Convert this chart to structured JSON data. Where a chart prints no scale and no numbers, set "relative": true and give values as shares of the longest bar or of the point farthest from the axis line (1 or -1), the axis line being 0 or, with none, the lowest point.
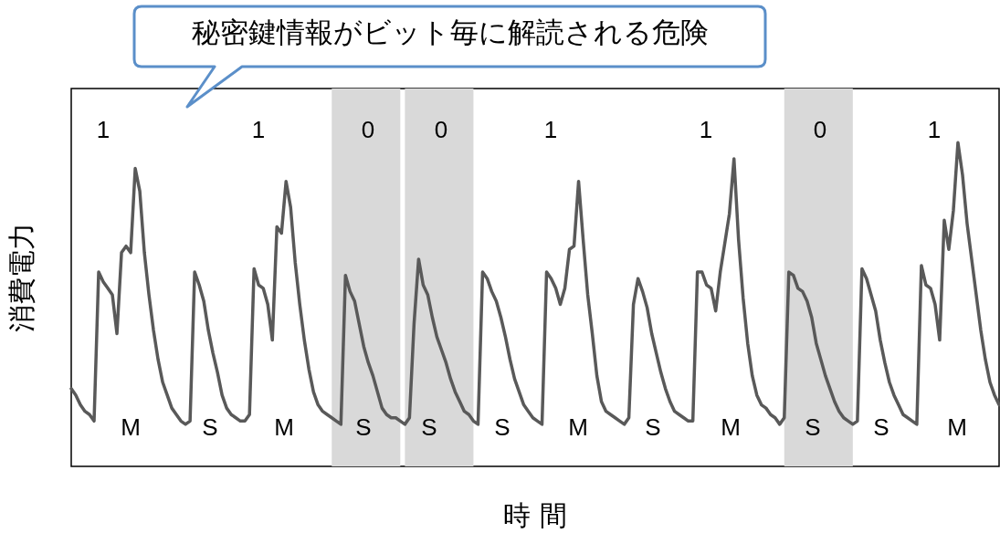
{
  "chart_data": {
    "type": "line",
    "relative": true,
    "xlabel": "時 間",
    "ylabel": "消費電力",
    "tick_labels": false,
    "grid": false,
    "line_style": "solid",
    "categories": [
      null,
      null,
      null,
      null,
      null,
      null,
      null,
      null,
      null,
      null,
      null,
      null,
      null,
      null,
      null,
      null,
      null,
      null,
      null,
      null,
      null,
      null,
      null,
      null,
      null,
      null,
      null,
      null,
      null,
      null,
      null,
      null,
      null,
      null,
      null,
      null,
      null,
      null,
      null,
      null,
      null,
      null,
      null,
      null,
      null,
      null,
      null,
      null,
      null,
      null,
      null,
      null,
      null,
      null,
      null,
      null,
      null,
      null,
      null,
      null,
      null,
      null,
      null,
      null,
      null,
      null,
      null,
      null,
      null,
      null,
      null,
      null,
      null,
      null,
      null,
      null,
      null,
      null,
      null,
      null,
      null,
      null,
      null,
      null,
      null,
      null,
      null,
      null,
      null,
      null,
      null,
      null,
      null,
      null,
      null,
      null,
      null,
      null,
      null,
      null,
      null,
      null,
      null,
      null,
      null,
      null,
      null,
      null,
      null,
      null,
      null,
      null,
      null,
      null,
      null,
      null,
      null,
      null,
      null,
      null,
      null,
      null,
      null,
      null,
      null,
      null,
      null,
      null,
      null,
      null,
      null,
      null,
      null,
      null,
      null,
      null,
      null,
      null,
      null,
      null,
      null,
      null,
      null,
      null,
      null,
      null,
      null,
      null,
      null,
      null,
      null,
      null,
      null,
      null,
      null,
      null,
      null,
      null,
      null,
      null,
      null,
      null,
      null,
      null,
      null,
      null,
      null,
      null,
      null,
      null,
      null,
      null,
      null,
      null,
      null,
      null,
      null,
      null,
      null,
      null,
      null,
      null,
      null,
      null,
      null,
      null,
      null,
      null,
      null,
      null,
      null,
      null,
      null,
      null,
      null,
      null,
      null,
      null,
      null,
      null,
      null,
      null,
      null,
      null
    ],
    "series": [
      {
        "color": "#595959",
        "values": [
          0.24,
          0.22,
          0.19,
          0.17,
          0.16,
          0.14,
          0.6,
          0.57,
          0.55,
          0.53,
          0.41,
          0.66,
          0.68,
          0.66,
          0.92,
          0.85,
          0.66,
          0.53,
          0.42,
          0.33,
          0.26,
          0.22,
          0.18,
          0.16,
          0.14,
          0.13,
          0.14,
          0.6,
          0.56,
          0.51,
          0.42,
          0.35,
          0.29,
          0.22,
          0.18,
          0.16,
          0.15,
          0.14,
          0.14,
          0.16,
          0.61,
          0.56,
          0.55,
          0.5,
          0.39,
          0.74,
          0.72,
          0.88,
          0.8,
          0.63,
          0.5,
          0.39,
          0.3,
          0.23,
          0.19,
          0.17,
          0.16,
          0.15,
          0.14,
          0.13,
          0.59,
          0.54,
          0.51,
          0.44,
          0.37,
          0.32,
          0.28,
          0.23,
          0.18,
          0.16,
          0.15,
          0.15,
          0.14,
          0.13,
          0.15,
          0.44,
          0.64,
          0.56,
          0.53,
          0.46,
          0.4,
          0.36,
          0.32,
          0.27,
          0.23,
          0.2,
          0.17,
          0.16,
          0.14,
          0.13,
          0.6,
          0.58,
          0.54,
          0.51,
          0.46,
          0.4,
          0.33,
          0.27,
          0.23,
          0.19,
          0.17,
          0.15,
          0.14,
          0.13,
          0.6,
          0.58,
          0.55,
          0.5,
          0.55,
          0.67,
          0.68,
          0.88,
          0.7,
          0.53,
          0.41,
          0.28,
          0.2,
          0.17,
          0.16,
          0.15,
          0.14,
          0.13,
          0.15,
          0.5,
          0.58,
          0.54,
          0.49,
          0.41,
          0.35,
          0.29,
          0.24,
          0.2,
          0.17,
          0.16,
          0.15,
          0.14,
          0.14,
          0.6,
          0.6,
          0.56,
          0.55,
          0.48,
          0.6,
          0.69,
          0.78,
          0.95,
          0.7,
          0.52,
          0.38,
          0.28,
          0.22,
          0.19,
          0.18,
          0.16,
          0.15,
          0.13,
          0.15,
          0.6,
          0.59,
          0.55,
          0.54,
          0.51,
          0.46,
          0.38,
          0.33,
          0.28,
          0.24,
          0.2,
          0.17,
          0.15,
          0.14,
          0.13,
          0.14,
          0.61,
          0.58,
          0.53,
          0.48,
          0.39,
          0.32,
          0.26,
          0.22,
          0.19,
          0.16,
          0.15,
          0.14,
          0.13,
          0.62,
          0.56,
          0.55,
          0.5,
          0.39,
          0.76,
          0.67,
          0.79,
          1.0,
          0.9,
          0.75,
          0.64,
          0.53,
          0.42,
          0.33,
          0.26,
          0.22,
          0.19
        ]
      }
    ],
    "annotations": [
      "秘密鍵情報がビット毎に解読される危険",
      "1",
      "1",
      "0",
      "0",
      "1",
      "1",
      "0",
      "1",
      "M",
      "S",
      "M",
      "S",
      "S",
      "S",
      "M",
      "S",
      "M",
      "S",
      "S",
      "M"
    ]
  }
}
